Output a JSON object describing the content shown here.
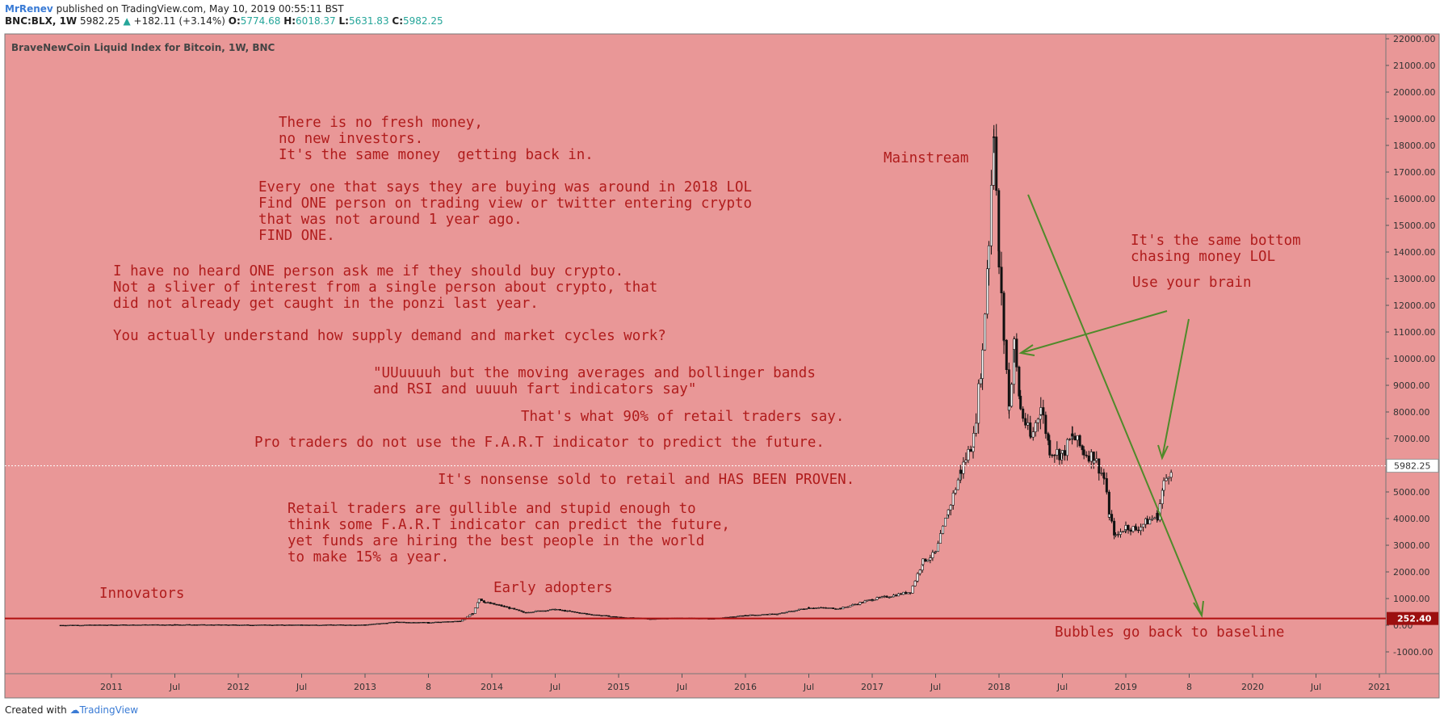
{
  "header": {
    "author": "MrRenev",
    "published": "published on TradingView.com, May 10, 2019 00:55:11 BST",
    "symbol": "BNC:BLX, 1W",
    "price": "5982.25",
    "change": "+182.11 (+3.14%)",
    "o_label": "O:",
    "o_value": "5774.68",
    "h_label": "H:",
    "h_value": "6018.37",
    "l_label": "L:",
    "l_value": "5631.83",
    "c_label": "C:",
    "c_value": "5982.25"
  },
  "footer": {
    "created_with": "Created with",
    "brand": "TradingView"
  },
  "colors": {
    "background": "#e99797",
    "text_red": "#b01c1c",
    "arrow_green": "#4f8a2a",
    "baseline_red": "#b01010",
    "candles": "#111111"
  },
  "chart_data": {
    "type": "candlestick",
    "title": "BraveNewCoin Liquid Index for Bitcoin, 1W, BNC",
    "ylim": [
      -2000,
      22200
    ],
    "y_ticks": [
      "22000.00",
      "21000.00",
      "20000.00",
      "19000.00",
      "18000.00",
      "17000.00",
      "16000.00",
      "15000.00",
      "14000.00",
      "13000.00",
      "12000.00",
      "11000.00",
      "10000.00",
      "9000.00",
      "8000.00",
      "7000.00",
      "6000.00",
      "5000.00",
      "4000.00",
      "3000.00",
      "2000.00",
      "1000.00",
      "0.00",
      "-1000.00"
    ],
    "x_ticks": [
      "2011",
      "Jul",
      "2012",
      "Jul",
      "2013",
      "8",
      "2014",
      "Jul",
      "2015",
      "Jul",
      "2016",
      "Jul",
      "2017",
      "Jul",
      "2018",
      "Jul",
      "2019",
      "8",
      "2020",
      "Jul",
      "2021"
    ],
    "price_line": {
      "value": 5982.25,
      "label": "5982.25"
    },
    "baseline": {
      "value": 252.4,
      "label": "252.40"
    },
    "series": [
      {
        "x": [
          2010.6,
          2011.0,
          2011.5,
          2012.0,
          2012.5,
          2013.0,
          2013.25,
          2013.5,
          2013.75,
          2013.85,
          2013.9,
          2013.95,
          2014.0,
          2014.1,
          2014.25,
          2014.5,
          2014.75,
          2015.0,
          2015.25,
          2015.5,
          2015.75,
          2016.0,
          2016.25,
          2016.5,
          2016.75,
          2017.0,
          2017.15,
          2017.3,
          2017.4,
          2017.5,
          2017.6,
          2017.7,
          2017.8,
          2017.87,
          2017.92,
          2017.96,
          2018.0,
          2018.04,
          2018.08,
          2018.12,
          2018.17,
          2018.25,
          2018.33,
          2018.4,
          2018.5,
          2018.58,
          2018.67,
          2018.75,
          2018.83,
          2018.87,
          2018.92,
          2019.0,
          2019.08,
          2019.17,
          2019.25,
          2019.3,
          2019.36
        ],
        "values": [
          0,
          10,
          20,
          10,
          10,
          15,
          120,
          100,
          150,
          450,
          1000,
          850,
          800,
          700,
          480,
          590,
          420,
          300,
          240,
          270,
          240,
          370,
          420,
          660,
          630,
          970,
          1100,
          1250,
          2400,
          2700,
          4300,
          5800,
          7000,
          10200,
          14500,
          18900,
          13500,
          10700,
          8200,
          10500,
          8100,
          7000,
          8200,
          6600,
          6400,
          7100,
          6500,
          6300,
          5500,
          4100,
          3300,
          3700,
          3600,
          3900,
          4100,
          5300,
          5982
        ]
      }
    ],
    "annotations": [
      "There is no fresh money,",
      "no new investors.",
      "It's the same money  getting back in.",
      "Every one that says they are buying was around in 2018 LOL",
      "Find ONE person on trading view or twitter entering crypto",
      "that was not around 1 year ago.",
      "FIND ONE.",
      "I have no heard ONE person ask me if they should buy crypto.",
      "Not a sliver of interest from a single person about crypto, that",
      "did not already get caught in the ponzi last year.",
      "You actually understand how supply demand and market cycles work?",
      "\"UUuuuuh but the moving averages and bollinger bands",
      "and RSI and uuuuh fart indicators say\"",
      "That's what 90% of retail traders say.",
      "Pro traders do not use the F.A.R.T indicator to predict the future.",
      "It's nonsense sold to retail and HAS BEEN PROVEN.",
      "Retail traders are gullible and stupid enough to",
      "think some F.A.R.T indicator can predict the future,",
      "yet funds are hiring the best people in the world",
      "to make 15% a year.",
      "Innovators",
      "Early adopters",
      "Mainstream",
      "It's the same bottom",
      "chasing money LOL",
      "Use your brain",
      "Bubbles go back to baseline"
    ]
  }
}
